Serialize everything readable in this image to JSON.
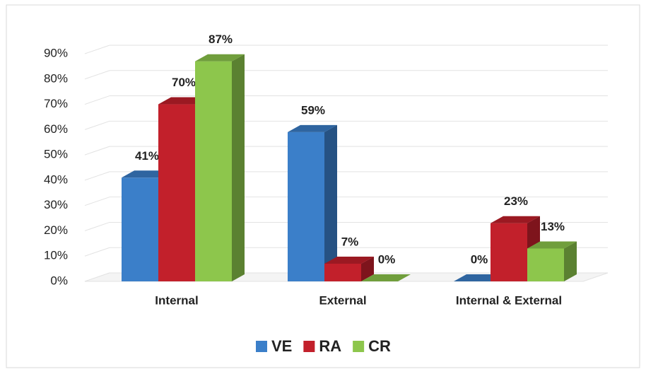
{
  "chart_data": {
    "type": "bar3d",
    "categories": [
      "Internal",
      "External",
      "Internal & External"
    ],
    "series": [
      {
        "name": "VE",
        "color": "#3b7fc9",
        "values": [
          41,
          59,
          0
        ],
        "value_labels": [
          "41%",
          "59%",
          "0%"
        ]
      },
      {
        "name": "RA",
        "color": "#c2202b",
        "values": [
          70,
          7,
          23
        ],
        "value_labels": [
          "70%",
          "7%",
          "23%"
        ]
      },
      {
        "name": "CR",
        "color": "#8dc64c",
        "values": [
          87,
          0,
          13
        ],
        "value_labels": [
          "87%",
          "0%",
          "13%"
        ]
      }
    ],
    "ylim": [
      0,
      90
    ],
    "yticks": [
      {
        "value": 0,
        "label": "0%"
      },
      {
        "value": 10,
        "label": "10%"
      },
      {
        "value": 20,
        "label": "20%"
      },
      {
        "value": 30,
        "label": "30%"
      },
      {
        "value": 40,
        "label": "40%"
      },
      {
        "value": 50,
        "label": "50%"
      },
      {
        "value": 60,
        "label": "60%"
      },
      {
        "value": 70,
        "label": "70%"
      },
      {
        "value": 80,
        "label": "80%"
      },
      {
        "value": 90,
        "label": "90%"
      }
    ],
    "grid": true,
    "legend": "bottom"
  }
}
